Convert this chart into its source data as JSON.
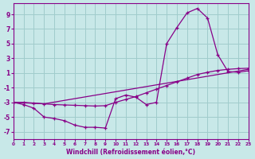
{
  "xlabel": "Windchill (Refroidissement éolien,°C)",
  "bg_color": "#c8e8e8",
  "grid_color": "#a0cccc",
  "line_color": "#880088",
  "xlim": [
    0,
    23
  ],
  "ylim": [
    -8,
    10.5
  ],
  "yticks": [
    -7,
    -5,
    -3,
    -1,
    1,
    3,
    5,
    7,
    9
  ],
  "xticks": [
    0,
    1,
    2,
    3,
    4,
    5,
    6,
    7,
    8,
    9,
    10,
    11,
    12,
    13,
    14,
    15,
    16,
    17,
    18,
    19,
    20,
    21,
    22,
    23
  ],
  "line1_x": [
    0,
    1,
    2,
    3,
    4,
    5,
    6,
    7,
    8,
    9,
    10,
    11,
    12,
    13,
    14,
    15,
    16,
    17,
    18,
    19,
    20,
    21,
    22,
    23
  ],
  "line1_y": [
    -3.0,
    -3.3,
    -3.8,
    -5.0,
    -5.2,
    -5.5,
    -6.1,
    -6.4,
    -6.4,
    -6.5,
    -2.5,
    -2.0,
    -2.3,
    -3.3,
    -3.0,
    5.0,
    7.2,
    9.2,
    9.8,
    8.5,
    3.5,
    1.2,
    1.1,
    1.3
  ],
  "line2_x": [
    0,
    3,
    23
  ],
  "line2_y": [
    -3.0,
    -3.2,
    1.5
  ],
  "line3_x": [
    0,
    1,
    2,
    3,
    4,
    5,
    6,
    7,
    8,
    9,
    10,
    11,
    12,
    13,
    14,
    15,
    16,
    17,
    18,
    19,
    20,
    21,
    22,
    23
  ],
  "line3_y": [
    -3.0,
    -3.0,
    -3.1,
    -3.2,
    -3.3,
    -3.35,
    -3.4,
    -3.45,
    -3.5,
    -3.45,
    -3.0,
    -2.6,
    -2.2,
    -1.7,
    -1.2,
    -0.7,
    -0.2,
    0.3,
    0.8,
    1.1,
    1.35,
    1.5,
    1.6,
    1.65
  ]
}
